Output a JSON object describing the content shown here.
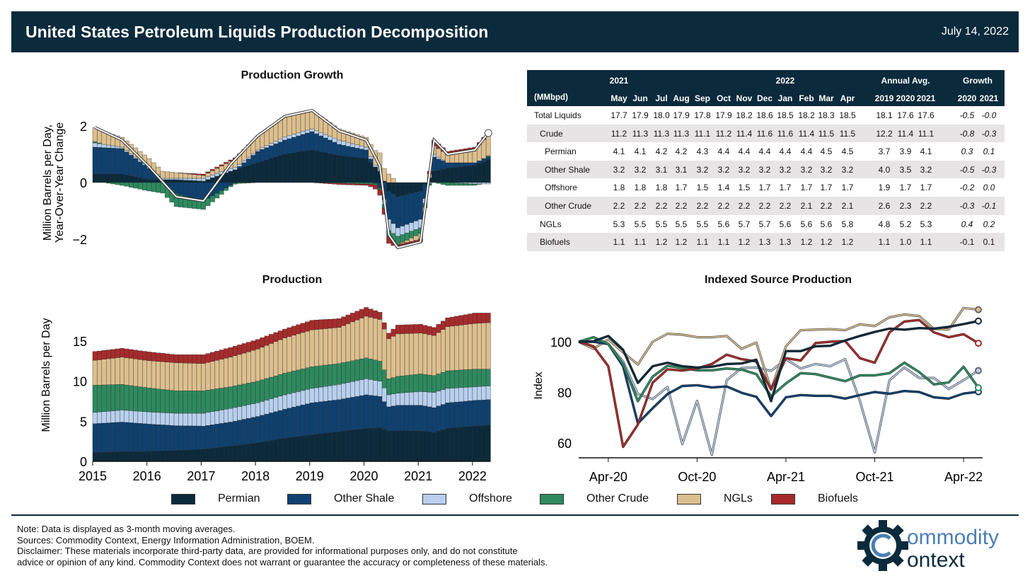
{
  "header": {
    "title": "United States Petroleum Liquids Production Decomposition",
    "date": "July 14, 2022"
  },
  "colors": {
    "Permian": "#0b2a3c",
    "Other Shale": "#0f4170",
    "Offshore": "#b8d0ee",
    "Other Crude": "#2e8a5f",
    "NGLs": "#dcbf8e",
    "Biofuels": "#a72b2b"
  },
  "legend": [
    "Permian",
    "Other Shale",
    "Offshore",
    "Other Crude",
    "NGLs",
    "Biofuels"
  ],
  "table": {
    "group_headers": {
      "y2021": "2021",
      "y2022": "2022",
      "annual": "Annual Avg.",
      "growth": "Growth"
    },
    "unit": "(MMbpd)",
    "columns": [
      "May",
      "Jun",
      "Jul",
      "Aug",
      "Sep",
      "Oct",
      "Nov",
      "Dec",
      "Jan",
      "Feb",
      "Mar",
      "Apr",
      "2019",
      "2020",
      "2021",
      "2020",
      "2021"
    ],
    "rows": [
      {
        "label": "Total Liquids",
        "values": [
          "17.7",
          "17.9",
          "18.0",
          "17.9",
          "17.8",
          "17.9",
          "18.2",
          "18.6",
          "18.5",
          "18.2",
          "18.3",
          "18.5",
          "18.1",
          "17.6",
          "17.6",
          "-0.5",
          "-0.0"
        ]
      },
      {
        "label": "Crude",
        "values": [
          "11.2",
          "11.3",
          "11.3",
          "11.3",
          "11.1",
          "11.2",
          "11.4",
          "11.6",
          "11.6",
          "11.4",
          "11.5",
          "11.5",
          "12.2",
          "11.4",
          "11.1",
          "-0.8",
          "-0.3"
        ]
      },
      {
        "label": "Permian",
        "values": [
          "4.1",
          "4.1",
          "4.2",
          "4.2",
          "4.3",
          "4.4",
          "4.4",
          "4.4",
          "4.4",
          "4.4",
          "4.5",
          "4.5",
          "3.7",
          "3.9",
          "4.1",
          "0.3",
          "0.1"
        ]
      },
      {
        "label": "Other Shale",
        "values": [
          "3.2",
          "3.2",
          "3.1",
          "3.1",
          "3.2",
          "3.2",
          "3.2",
          "3.2",
          "3.2",
          "3.2",
          "3.2",
          "3.2",
          "4.0",
          "3.5",
          "3.2",
          "-0.5",
          "-0.3"
        ]
      },
      {
        "label": "Offshore",
        "values": [
          "1.8",
          "1.8",
          "1.8",
          "1.7",
          "1.5",
          "1.4",
          "1.5",
          "1.7",
          "1.7",
          "1.7",
          "1.7",
          "1.7",
          "1.9",
          "1.7",
          "1.7",
          "-0.2",
          "0.0"
        ]
      },
      {
        "label": "Other Crude",
        "values": [
          "2.2",
          "2.2",
          "2.2",
          "2.2",
          "2.2",
          "2.2",
          "2.2",
          "2.2",
          "2.2",
          "2.1",
          "2.2",
          "2.1",
          "2.6",
          "2.3",
          "2.2",
          "-0.3",
          "-0.1"
        ]
      },
      {
        "label": "NGLs",
        "values": [
          "5.3",
          "5.5",
          "5.5",
          "5.5",
          "5.5",
          "5.6",
          "5.7",
          "5.7",
          "5.6",
          "5.6",
          "5.6",
          "5.8",
          "4.8",
          "5.2",
          "5.3",
          "0.4",
          "0.2"
        ]
      },
      {
        "label": "Biofuels",
        "values": [
          "1.1",
          "1.1",
          "1.2",
          "1.2",
          "1.1",
          "1.1",
          "1.2",
          "1.3",
          "1.3",
          "1.2",
          "1.2",
          "1.2",
          "1.1",
          "1.0",
          "1.1",
          "-0.1",
          "0.1"
        ]
      }
    ]
  },
  "chart_data": [
    {
      "type": "bar",
      "stacked": true,
      "title": "Production Growth",
      "ylabel": "Million Barrels per Day,\nYear-Over-Year Change",
      "ylabel_lines": [
        "Million Barrels per Day,",
        "Year-Over-Year Change"
      ],
      "ylim": [
        -2.6,
        2.9
      ],
      "yticks": [
        {
          "v": 2,
          "label": "2"
        },
        {
          "v": 0,
          "label": "0"
        },
        {
          "v": -2,
          "label": "−2"
        }
      ],
      "x_months_from_jan2015": [
        0,
        6,
        12,
        18,
        24,
        30,
        36,
        42,
        48,
        54,
        60,
        63,
        65,
        67,
        72,
        75,
        78,
        84,
        87
      ],
      "series": [
        {
          "name": "Permian",
          "values": [
            0.3,
            0.3,
            0.1,
            0.1,
            0.05,
            0.4,
            0.7,
            1.0,
            1.15,
            0.95,
            0.85,
            0.4,
            -0.3,
            -0.5,
            -0.3,
            0.4,
            0.5,
            0.6,
            0.8
          ]
        },
        {
          "name": "Other Shale",
          "values": [
            0.95,
            0.9,
            0.4,
            -0.4,
            -0.65,
            -0.1,
            0.4,
            0.5,
            0.65,
            0.4,
            0.3,
            -0.2,
            -1.0,
            -1.1,
            -1.0,
            0.5,
            0.2,
            0.1,
            0.1
          ]
        },
        {
          "name": "Offshore",
          "values": [
            0.15,
            0.05,
            0.05,
            0.05,
            0.1,
            0.1,
            0.05,
            0.12,
            0.1,
            0.15,
            0.1,
            0.05,
            -0.4,
            -0.3,
            -0.3,
            0.1,
            0.0,
            -0.05,
            -0.05
          ]
        },
        {
          "name": "Other Crude",
          "values": [
            0.05,
            -0.1,
            -0.3,
            -0.45,
            -0.3,
            -0.05,
            0.0,
            0.0,
            0.0,
            -0.02,
            -0.05,
            -0.05,
            -0.2,
            -0.3,
            -0.2,
            0.0,
            -0.1,
            -0.05,
            0.05
          ]
        },
        {
          "name": "NGLs",
          "values": [
            0.5,
            0.35,
            0.3,
            0.2,
            0.1,
            0.25,
            0.5,
            0.7,
            0.65,
            0.4,
            0.35,
            0.6,
            0.3,
            0.0,
            -0.2,
            0.3,
            0.3,
            0.5,
            0.75
          ]
        },
        {
          "name": "Biofuels",
          "values": [
            0.0,
            0.0,
            0.0,
            0.0,
            0.05,
            0.05,
            0.0,
            0.02,
            0.0,
            -0.05,
            -0.05,
            -0.2,
            -0.25,
            -0.1,
            -0.1,
            0.2,
            0.1,
            0.05,
            0.1
          ]
        }
      ],
      "total_line": "Total Liquids"
    },
    {
      "type": "bar",
      "stacked": true,
      "title": "Production",
      "ylabel": "Million Barrels per Day",
      "ylim": [
        0,
        20
      ],
      "yticks": [
        {
          "v": 0,
          "label": "0"
        },
        {
          "v": 5,
          "label": "5"
        },
        {
          "v": 10,
          "label": "10"
        },
        {
          "v": 15,
          "label": "15"
        }
      ],
      "xticks": [
        "2015",
        "2016",
        "2017",
        "2018",
        "2019",
        "2020",
        "2021",
        "2022"
      ],
      "x_months_from_jan2015": [
        0,
        6,
        12,
        18,
        24,
        30,
        36,
        42,
        48,
        54,
        60,
        63,
        65,
        67,
        72,
        75,
        78,
        84,
        87
      ],
      "series": [
        {
          "name": "Permian",
          "values": [
            1.1,
            1.2,
            1.25,
            1.35,
            1.5,
            1.9,
            2.3,
            2.9,
            3.3,
            3.7,
            4.1,
            4.2,
            3.8,
            3.8,
            3.8,
            3.6,
            4.1,
            4.4,
            4.5
          ]
        },
        {
          "name": "Other Shale",
          "values": [
            3.6,
            3.7,
            3.4,
            3.1,
            2.9,
            3.0,
            3.3,
            3.6,
            4.0,
            4.0,
            4.2,
            3.9,
            3.0,
            3.2,
            3.2,
            3.1,
            3.2,
            3.2,
            3.2
          ]
        },
        {
          "name": "Offshore",
          "values": [
            1.4,
            1.5,
            1.5,
            1.55,
            1.6,
            1.7,
            1.7,
            1.8,
            1.8,
            1.9,
            2.0,
            1.9,
            1.5,
            1.5,
            1.7,
            1.9,
            1.8,
            1.7,
            1.7
          ]
        },
        {
          "name": "Other Crude",
          "values": [
            3.4,
            3.2,
            3.0,
            2.8,
            2.8,
            2.7,
            2.7,
            2.7,
            2.7,
            2.6,
            2.6,
            2.5,
            2.0,
            2.1,
            2.2,
            2.1,
            2.2,
            2.2,
            2.1
          ]
        },
        {
          "name": "NGLs",
          "values": [
            3.1,
            3.4,
            3.4,
            3.5,
            3.4,
            3.7,
            4.0,
            4.4,
            4.6,
            4.5,
            5.2,
            5.2,
            5.0,
            5.3,
            5.1,
            5.0,
            5.5,
            5.7,
            5.8
          ]
        },
        {
          "name": "Biofuels",
          "values": [
            1.1,
            1.1,
            1.1,
            1.0,
            1.1,
            1.2,
            1.2,
            1.1,
            1.2,
            1.1,
            1.1,
            0.9,
            0.7,
            1.1,
            1.1,
            1.0,
            1.1,
            1.3,
            1.2
          ]
        }
      ]
    },
    {
      "type": "line",
      "title": "Indexed Source Production",
      "ylabel": "Index",
      "ylim": [
        53,
        115
      ],
      "yticks": [
        {
          "v": 60,
          "label": "60"
        },
        {
          "v": 80,
          "label": "80"
        },
        {
          "v": 100,
          "label": "100"
        }
      ],
      "xticks": [
        {
          "i": 2,
          "label": "Apr-20"
        },
        {
          "i": 8,
          "label": "Oct-20"
        },
        {
          "i": 14,
          "label": "Apr-21"
        },
        {
          "i": 20,
          "label": "Oct-21"
        },
        {
          "i": 26,
          "label": "Apr-22"
        }
      ],
      "series": [
        {
          "name": "Permian",
          "values": [
            100,
            100.2,
            102.3,
            96.8,
            83.7,
            90.3,
            91.7,
            90.3,
            89.8,
            90.1,
            91.2,
            91.4,
            92.9,
            76.5,
            96.3,
            96.3,
            98.2,
            98.4,
            100.5,
            102.3,
            103.9,
            105.2,
            104.8,
            105.4,
            105.2,
            105.9,
            107,
            108.2
          ]
        },
        {
          "name": "Other Shale",
          "values": [
            100,
            100,
            99.1,
            90.3,
            67.7,
            73.7,
            79.3,
            82.5,
            82.8,
            81.9,
            82.3,
            79.8,
            78.2,
            70.6,
            78,
            78.9,
            78.6,
            78.6,
            77.5,
            78.9,
            80.1,
            79.4,
            80.5,
            80.1,
            78,
            77.5,
            79.5,
            80.2
          ]
        },
        {
          "name": "Offshore",
          "values": [
            100,
            100,
            99.1,
            92.2,
            79.3,
            77.3,
            82.1,
            59.5,
            76.6,
            55.2,
            84.8,
            89.6,
            89.8,
            88.5,
            93.1,
            89.4,
            91.2,
            90.3,
            93.1,
            76.5,
            56.2,
            84.8,
            89.8,
            85.7,
            85.7,
            81.3,
            84.8,
            88.6
          ]
        },
        {
          "name": "Other Crude",
          "values": [
            100,
            101.8,
            99.1,
            91.2,
            76.5,
            86.2,
            90.5,
            89.6,
            88.7,
            88.7,
            89.4,
            89,
            87.2,
            78.4,
            83.5,
            87.6,
            87.2,
            85.8,
            84.4,
            86.7,
            86.7,
            87.6,
            91.7,
            88,
            83.1,
            83.9,
            90.1,
            81.8
          ]
        },
        {
          "name": "NGLs",
          "values": [
            100,
            97.2,
            100.9,
            95.8,
            91,
            100,
            103.2,
            102.8,
            101.8,
            101.8,
            102.3,
            97.2,
            99.7,
            81.1,
            98.2,
            104.6,
            104.8,
            105,
            104.6,
            106.9,
            106.2,
            109.7,
            110.8,
            110.2,
            105.1,
            104.8,
            113.4,
            112.7
          ]
        },
        {
          "name": "Biofuels",
          "values": [
            100,
            98.2,
            90.3,
            58.4,
            67.2,
            83.8,
            89.1,
            88.6,
            89.4,
            91.2,
            94.9,
            93.1,
            92.2,
            81.1,
            93.5,
            92.6,
            99.5,
            100,
            100.3,
            93.5,
            91.7,
            103.7,
            108,
            108.6,
            103.7,
            101.8,
            103,
            99.4
          ]
        }
      ]
    }
  ],
  "notes": [
    "Note: Data is displayed as 3-month moving averages.",
    "Sources: Commodity Context, Energy Information Administration, BOEM.",
    "Disclaimer: These materials incorporate third-party data, are provided for informational purposes only, and do not constitute",
    "advice or opinion of any kind. Commodity Context does not warrant or guarantee the accuracy or completeness of these materials."
  ],
  "logo": {
    "line1": "ommodity",
    "line2": "ontext"
  }
}
